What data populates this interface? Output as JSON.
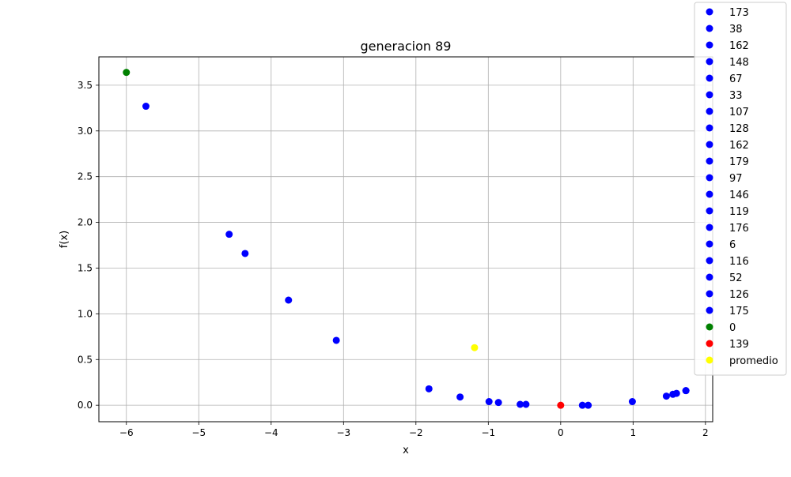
{
  "chart_data": {
    "type": "scatter",
    "title": "generacion 89",
    "xlabel": "x",
    "ylabel": "f(x)",
    "xlim": [
      -6.38,
      2.1
    ],
    "ylim": [
      -0.18,
      3.81
    ],
    "xticks": [
      -6,
      -5,
      -4,
      -3,
      -2,
      -1,
      0,
      1,
      2
    ],
    "xtick_labels": [
      "−6",
      "−5",
      "−4",
      "−3",
      "−2",
      "−1",
      "0",
      "1",
      "2"
    ],
    "yticks": [
      0.0,
      0.5,
      1.0,
      1.5,
      2.0,
      2.5,
      3.0,
      3.5
    ],
    "ytick_labels": [
      "0.0",
      "0.5",
      "1.0",
      "1.5",
      "2.0",
      "2.5",
      "3.0",
      "3.5"
    ],
    "grid": true,
    "legend_position": "upper right, outside the axes",
    "series": [
      {
        "name": "173",
        "color": "#0000ff",
        "x": [
          -5.73
        ],
        "y": [
          3.27
        ]
      },
      {
        "name": "38",
        "color": "#0000ff",
        "x": [
          -4.58
        ],
        "y": [
          1.87
        ]
      },
      {
        "name": "162",
        "color": "#0000ff",
        "x": [
          -4.36
        ],
        "y": [
          1.66
        ]
      },
      {
        "name": "148",
        "color": "#0000ff",
        "x": [
          -3.76
        ],
        "y": [
          1.15
        ]
      },
      {
        "name": "67",
        "color": "#0000ff",
        "x": [
          -3.1
        ],
        "y": [
          0.71
        ]
      },
      {
        "name": "33",
        "color": "#0000ff",
        "x": [
          -1.82
        ],
        "y": [
          0.18
        ]
      },
      {
        "name": "107",
        "color": "#0000ff",
        "x": [
          -1.39
        ],
        "y": [
          0.09
        ]
      },
      {
        "name": "128",
        "color": "#0000ff",
        "x": [
          -0.99
        ],
        "y": [
          0.04
        ]
      },
      {
        "name": "162",
        "color": "#0000ff",
        "x": [
          -0.86
        ],
        "y": [
          0.03
        ]
      },
      {
        "name": "179",
        "color": "#0000ff",
        "x": [
          -0.56
        ],
        "y": [
          0.01
        ]
      },
      {
        "name": "97",
        "color": "#0000ff",
        "x": [
          -0.48
        ],
        "y": [
          0.01
        ]
      },
      {
        "name": "146",
        "color": "#0000ff",
        "x": [
          0.3
        ],
        "y": [
          0.0
        ]
      },
      {
        "name": "119",
        "color": "#0000ff",
        "x": [
          0.38
        ],
        "y": [
          0.0
        ]
      },
      {
        "name": "176",
        "color": "#0000ff",
        "x": [
          0.99
        ],
        "y": [
          0.04
        ]
      },
      {
        "name": "6",
        "color": "#0000ff",
        "x": [
          1.46
        ],
        "y": [
          0.1
        ]
      },
      {
        "name": "116",
        "color": "#0000ff",
        "x": [
          1.55
        ],
        "y": [
          0.12
        ]
      },
      {
        "name": "52",
        "color": "#0000ff",
        "x": [
          1.6
        ],
        "y": [
          0.13
        ]
      },
      {
        "name": "126",
        "color": "#0000ff",
        "x": [
          1.73
        ],
        "y": [
          0.16
        ]
      },
      {
        "name": "175",
        "color": "#0000ff",
        "x": [
          1.73
        ],
        "y": [
          0.16
        ]
      },
      {
        "name": "0",
        "color": "#008000",
        "x": [
          -6.0
        ],
        "y": [
          3.64
        ]
      },
      {
        "name": "139",
        "color": "#ff0000",
        "x": [
          0.0
        ],
        "y": [
          0.0
        ]
      },
      {
        "name": "promedio",
        "color": "#ffff00",
        "x": [
          -1.19
        ],
        "y": [
          0.63
        ]
      }
    ]
  }
}
